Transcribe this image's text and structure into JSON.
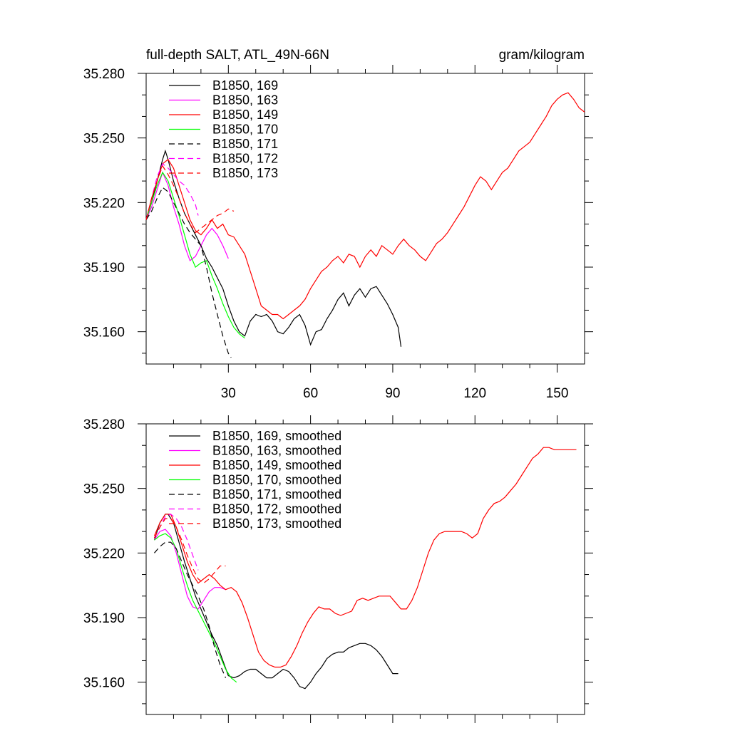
{
  "header": {
    "title": "full-depth SALT, ATL_49N-66N",
    "units": "gram/kilogram"
  },
  "colors": {
    "black": "#000000",
    "magenta": "#ff00ff",
    "red": "#ff0000",
    "green": "#00ff00"
  },
  "chart_data": [
    {
      "type": "line",
      "panel": "top",
      "xlim": [
        0,
        160
      ],
      "ylim": [
        35.145,
        35.28
      ],
      "x_ticks": [
        30,
        60,
        90,
        120,
        150
      ],
      "x_tick_labels": [
        "30",
        "60",
        "90",
        "120",
        "150"
      ],
      "y_ticks": [
        35.16,
        35.19,
        35.22,
        35.25,
        35.28
      ],
      "y_tick_labels": [
        "35.160",
        "35.190",
        "35.220",
        "35.250",
        "35.280"
      ],
      "legend_position": "top-left",
      "series": [
        {
          "name": "B1850, 169",
          "color": "black",
          "dash": "solid",
          "x": [
            0,
            2,
            4,
            6,
            7,
            8,
            10,
            12,
            14,
            16,
            18,
            20,
            22,
            24,
            26,
            28,
            30,
            32,
            34,
            36,
            38,
            40,
            42,
            44,
            46,
            48,
            50,
            52,
            54,
            56,
            58,
            60,
            62,
            64,
            66,
            68,
            70,
            72,
            74,
            76,
            78,
            80,
            82,
            84,
            86,
            88,
            90,
            92,
            93
          ],
          "y": [
            35.212,
            35.22,
            35.23,
            35.24,
            35.244,
            35.24,
            35.23,
            35.222,
            35.215,
            35.21,
            35.205,
            35.2,
            35.194,
            35.19,
            35.185,
            35.18,
            35.172,
            35.165,
            35.16,
            35.158,
            35.165,
            35.168,
            35.167,
            35.168,
            35.165,
            35.16,
            35.159,
            35.162,
            35.166,
            35.168,
            35.163,
            35.154,
            35.16,
            35.161,
            35.166,
            35.17,
            35.175,
            35.178,
            35.172,
            35.177,
            35.18,
            35.176,
            35.18,
            35.181,
            35.177,
            35.173,
            35.168,
            35.162,
            35.153
          ]
        },
        {
          "name": "B1850, 163",
          "color": "magenta",
          "dash": "solid",
          "x": [
            0,
            2,
            4,
            6,
            8,
            10,
            12,
            14,
            16,
            18,
            20,
            22,
            24,
            26,
            28,
            30
          ],
          "y": [
            35.212,
            35.218,
            35.226,
            35.234,
            35.228,
            35.218,
            35.21,
            35.2,
            35.193,
            35.195,
            35.2,
            35.205,
            35.208,
            35.205,
            35.2,
            35.194
          ]
        },
        {
          "name": "B1850, 149",
          "color": "red",
          "dash": "solid",
          "x": [
            0,
            2,
            4,
            6,
            8,
            10,
            12,
            14,
            16,
            18,
            20,
            22,
            24,
            26,
            28,
            30,
            32,
            34,
            36,
            38,
            40,
            42,
            44,
            46,
            48,
            50,
            52,
            54,
            56,
            58,
            60,
            62,
            64,
            66,
            68,
            70,
            72,
            74,
            76,
            78,
            80,
            82,
            84,
            86,
            88,
            90,
            92,
            94,
            96,
            98,
            100,
            102,
            104,
            106,
            108,
            110,
            112,
            114,
            116,
            118,
            120,
            122,
            124,
            126,
            128,
            130,
            132,
            134,
            136,
            138,
            140,
            142,
            144,
            146,
            148,
            150,
            152,
            154,
            156,
            158,
            160
          ],
          "y": [
            35.212,
            35.222,
            35.23,
            35.238,
            35.24,
            35.236,
            35.228,
            35.22,
            35.212,
            35.207,
            35.205,
            35.208,
            35.212,
            35.208,
            35.21,
            35.205,
            35.204,
            35.2,
            35.196,
            35.188,
            35.18,
            35.172,
            35.17,
            35.168,
            35.168,
            35.166,
            35.168,
            35.17,
            35.172,
            35.175,
            35.18,
            35.184,
            35.188,
            35.19,
            35.193,
            35.195,
            35.192,
            35.196,
            35.195,
            35.19,
            35.195,
            35.198,
            35.195,
            35.2,
            35.198,
            35.196,
            35.2,
            35.203,
            35.2,
            35.198,
            35.195,
            35.193,
            35.197,
            35.201,
            35.203,
            35.206,
            35.21,
            35.214,
            35.218,
            35.223,
            35.228,
            35.232,
            35.23,
            35.226,
            35.23,
            35.234,
            35.236,
            35.24,
            35.244,
            35.246,
            35.248,
            35.252,
            35.256,
            35.26,
            35.265,
            35.268,
            35.27,
            35.271,
            35.268,
            35.264,
            35.262
          ]
        },
        {
          "name": "B1850, 170",
          "color": "green",
          "dash": "solid",
          "x": [
            0,
            2,
            4,
            6,
            8,
            10,
            12,
            14,
            16,
            18,
            20,
            22,
            24,
            26,
            28,
            30,
            32,
            34,
            36
          ],
          "y": [
            35.212,
            35.22,
            35.228,
            35.234,
            35.23,
            35.222,
            35.214,
            35.205,
            35.196,
            35.19,
            35.192,
            35.193,
            35.186,
            35.18,
            35.173,
            35.167,
            35.162,
            35.159,
            35.157
          ]
        },
        {
          "name": "B1850, 171",
          "color": "black",
          "dash": "dashed",
          "x": [
            0,
            2,
            4,
            6,
            8,
            10,
            12,
            14,
            16,
            18,
            20,
            22,
            24,
            26,
            28,
            30,
            31
          ],
          "y": [
            35.212,
            35.216,
            35.222,
            35.227,
            35.225,
            35.22,
            35.215,
            35.21,
            35.206,
            35.203,
            35.2,
            35.19,
            35.178,
            35.168,
            35.158,
            35.15,
            35.148
          ]
        },
        {
          "name": "B1850, 172",
          "color": "magenta",
          "dash": "dashed",
          "x": [
            0,
            2,
            4,
            6,
            8,
            10,
            12,
            14,
            16,
            18,
            19
          ],
          "y": [
            35.212,
            35.222,
            35.232,
            35.238,
            35.236,
            35.233,
            35.23,
            35.228,
            35.224,
            35.219,
            35.214
          ]
        },
        {
          "name": "B1850, 173",
          "color": "red",
          "dash": "dashed",
          "x": [
            0,
            2,
            4,
            6,
            8,
            10,
            12,
            14,
            16,
            18,
            20,
            22,
            24,
            26,
            28,
            30,
            32
          ],
          "y": [
            35.212,
            35.222,
            35.23,
            35.237,
            35.233,
            35.228,
            35.222,
            35.215,
            35.21,
            35.206,
            35.208,
            35.21,
            35.212,
            35.214,
            35.215,
            35.217,
            35.216
          ]
        }
      ]
    },
    {
      "type": "line",
      "panel": "bottom",
      "xlim": [
        0,
        160
      ],
      "ylim": [
        35.145,
        35.28
      ],
      "x_ticks": [
        30,
        60,
        90,
        120,
        150
      ],
      "x_tick_labels": [],
      "y_ticks": [
        35.16,
        35.19,
        35.22,
        35.25,
        35.28
      ],
      "y_tick_labels": [
        "35.160",
        "35.190",
        "35.220",
        "35.250",
        "35.280"
      ],
      "legend_position": "top-left",
      "series": [
        {
          "name": "B1850, 169, smoothed",
          "color": "black",
          "dash": "solid",
          "x": [
            3,
            5,
            7,
            8,
            10,
            12,
            14,
            16,
            18,
            20,
            22,
            24,
            26,
            28,
            30,
            32,
            34,
            36,
            38,
            40,
            42,
            44,
            46,
            48,
            50,
            52,
            54,
            56,
            58,
            60,
            62,
            64,
            66,
            68,
            70,
            72,
            74,
            76,
            78,
            80,
            82,
            84,
            86,
            88,
            90,
            92
          ],
          "y": [
            35.226,
            35.234,
            35.238,
            35.238,
            35.234,
            35.225,
            35.216,
            35.208,
            35.2,
            35.194,
            35.188,
            35.182,
            35.177,
            35.17,
            35.163,
            35.162,
            35.163,
            35.165,
            35.166,
            35.166,
            35.164,
            35.162,
            35.162,
            35.164,
            35.166,
            35.165,
            35.162,
            35.158,
            35.157,
            35.16,
            35.164,
            35.167,
            35.171,
            35.173,
            35.174,
            35.174,
            35.176,
            35.177,
            35.178,
            35.178,
            35.177,
            35.175,
            35.172,
            35.168,
            35.164,
            35.164
          ]
        },
        {
          "name": "B1850, 163, smoothed",
          "color": "magenta",
          "dash": "solid",
          "x": [
            3,
            5,
            7,
            9,
            11,
            13,
            15,
            17,
            19,
            21,
            23,
            25,
            27,
            29
          ],
          "y": [
            35.226,
            35.23,
            35.231,
            35.228,
            35.22,
            35.21,
            35.2,
            35.195,
            35.194,
            35.198,
            35.202,
            35.204,
            35.204,
            35.203
          ]
        },
        {
          "name": "B1850, 149, smoothed",
          "color": "red",
          "dash": "solid",
          "x": [
            3,
            5,
            7,
            9,
            11,
            13,
            15,
            17,
            19,
            21,
            23,
            25,
            27,
            29,
            31,
            33,
            35,
            37,
            39,
            41,
            43,
            45,
            47,
            49,
            51,
            53,
            55,
            57,
            59,
            61,
            63,
            65,
            67,
            69,
            71,
            73,
            75,
            77,
            79,
            81,
            83,
            85,
            87,
            89,
            91,
            93,
            95,
            97,
            99,
            101,
            103,
            105,
            107,
            109,
            111,
            113,
            115,
            117,
            119,
            121,
            123,
            125,
            127,
            129,
            131,
            133,
            135,
            137,
            139,
            141,
            143,
            145,
            147,
            149,
            151,
            153,
            155,
            157
          ],
          "y": [
            35.228,
            35.234,
            35.238,
            35.238,
            35.232,
            35.224,
            35.216,
            35.21,
            35.206,
            35.208,
            35.21,
            35.208,
            35.205,
            35.203,
            35.204,
            35.202,
            35.197,
            35.19,
            35.182,
            35.174,
            35.17,
            35.168,
            35.167,
            35.167,
            35.168,
            35.172,
            35.177,
            35.183,
            35.188,
            35.192,
            35.195,
            35.194,
            35.194,
            35.192,
            35.191,
            35.192,
            35.193,
            35.198,
            35.199,
            35.198,
            35.199,
            35.2,
            35.2,
            35.2,
            35.197,
            35.194,
            35.194,
            35.198,
            35.204,
            35.212,
            35.22,
            35.226,
            35.229,
            35.23,
            35.23,
            35.23,
            35.23,
            35.229,
            35.227,
            35.229,
            35.236,
            35.24,
            35.243,
            35.244,
            35.246,
            35.249,
            35.252,
            35.256,
            35.26,
            35.264,
            35.266,
            35.269,
            35.269,
            35.268,
            35.268,
            35.268,
            35.268,
            35.268
          ]
        },
        {
          "name": "B1850, 170, smoothed",
          "color": "green",
          "dash": "solid",
          "x": [
            3,
            5,
            7,
            9,
            11,
            13,
            15,
            17,
            19,
            21,
            23,
            25,
            27,
            29,
            31,
            33
          ],
          "y": [
            35.226,
            35.228,
            35.229,
            35.227,
            35.222,
            35.213,
            35.205,
            35.198,
            35.193,
            35.188,
            35.183,
            35.178,
            35.172,
            35.166,
            35.162,
            35.16
          ]
        },
        {
          "name": "B1850, 171, smoothed",
          "color": "black",
          "dash": "dashed",
          "x": [
            3,
            5,
            7,
            9,
            11,
            13,
            15,
            17,
            19,
            21,
            23,
            25,
            27,
            29
          ],
          "y": [
            35.22,
            35.223,
            35.225,
            35.225,
            35.222,
            35.216,
            35.21,
            35.205,
            35.2,
            35.194,
            35.186,
            35.176,
            35.168,
            35.162
          ]
        },
        {
          "name": "B1850, 172, smoothed",
          "color": "magenta",
          "dash": "dashed",
          "x": [
            3,
            5,
            7,
            9,
            11,
            13,
            15,
            17,
            19
          ],
          "y": [
            35.227,
            35.232,
            35.237,
            35.238,
            35.236,
            35.232,
            35.226,
            35.219,
            35.212
          ]
        },
        {
          "name": "B1850, 173, smoothed",
          "color": "red",
          "dash": "dashed",
          "x": [
            3,
            5,
            7,
            9,
            11,
            13,
            15,
            17,
            19,
            21,
            23,
            25,
            27,
            29
          ],
          "y": [
            35.227,
            35.232,
            35.236,
            35.236,
            35.232,
            35.226,
            35.219,
            35.213,
            35.208,
            35.206,
            35.208,
            35.211,
            35.214,
            35.214
          ]
        }
      ]
    }
  ]
}
